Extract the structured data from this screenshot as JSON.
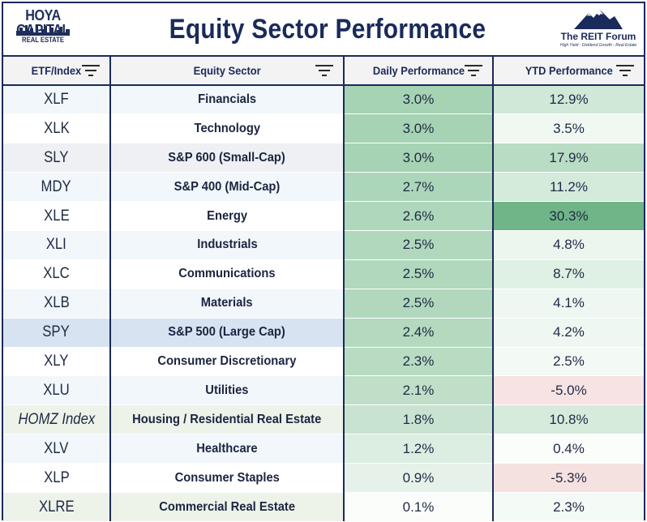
{
  "header": {
    "title": "Equity Sector Performance",
    "logo_left": {
      "line1": "HOYA CAPITAL",
      "line2": "REAL ESTATE"
    },
    "logo_right": {
      "name": "The REIT Forum",
      "tagline": "High Yield - Dividend Growth - Real Estate"
    }
  },
  "columns": [
    {
      "label": "ETF/Index"
    },
    {
      "label": "Equity Sector"
    },
    {
      "label": "Daily Performance"
    },
    {
      "label": "YTD Performance"
    }
  ],
  "icons": {
    "filter": "filter-icon",
    "logo_left": "skyline-icon",
    "logo_right": "mountain-icon"
  },
  "colors": {
    "border": "#1a2a5a",
    "green_strong": "#6fb587",
    "negative": "#f7e3e3"
  },
  "rows": [
    {
      "etf": "XLF",
      "sector": "Financials",
      "daily": "3.0%",
      "ytd": "12.9%",
      "bg1": "#f1f7fb",
      "bg3": "#a6d3b3",
      "bg4": "#cfe8d7"
    },
    {
      "etf": "XLK",
      "sector": "Technology",
      "daily": "3.0%",
      "ytd": "3.5%",
      "bg1": "#ffffff",
      "bg3": "#a6d3b3",
      "bg4": "#f0f8f2"
    },
    {
      "etf": "SLY",
      "sector": "S&P 600 (Small-Cap)",
      "daily": "3.0%",
      "ytd": "17.9%",
      "bg1": "#eef0f3",
      "bg3": "#a6d3b3",
      "bg4": "#b9dcc4"
    },
    {
      "etf": "MDY",
      "sector": "S&P 400 (Mid-Cap)",
      "daily": "2.7%",
      "ytd": "11.2%",
      "bg1": "#f1f7fb",
      "bg3": "#acd6b9",
      "bg4": "#d4eadb"
    },
    {
      "etf": "XLE",
      "sector": "Energy",
      "daily": "2.6%",
      "ytd": "30.3%",
      "bg1": "#ffffff",
      "bg3": "#afd7bb",
      "bg4": "#6fb587"
    },
    {
      "etf": "XLI",
      "sector": "Industrials",
      "daily": "2.5%",
      "ytd": "4.8%",
      "bg1": "#f1f7fb",
      "bg3": "#b1d8bd",
      "bg4": "#ecf6ef"
    },
    {
      "etf": "XLC",
      "sector": "Communications",
      "daily": "2.5%",
      "ytd": "8.7%",
      "bg1": "#ffffff",
      "bg3": "#b1d8bd",
      "bg4": "#dff0e4"
    },
    {
      "etf": "XLB",
      "sector": "Materials",
      "daily": "2.5%",
      "ytd": "4.1%",
      "bg1": "#f1f7fb",
      "bg3": "#b1d8bd",
      "bg4": "#eef7f1"
    },
    {
      "etf": "SPY",
      "sector": "S&P 500 (Large Cap)",
      "daily": "2.4%",
      "ytd": "4.2%",
      "bg1": "#d7e3f1",
      "bg3": "#b4d9bf",
      "bg4": "#eef7f1"
    },
    {
      "etf": "XLY",
      "sector": "Consumer Discretionary",
      "daily": "2.3%",
      "ytd": "2.5%",
      "bg1": "#ffffff",
      "bg3": "#b8dbc2",
      "bg4": "#f3f9f5"
    },
    {
      "etf": "XLU",
      "sector": "Utilities",
      "daily": "2.1%",
      "ytd": "-5.0%",
      "bg1": "#f1f7fb",
      "bg3": "#bfdfc8",
      "bg4": "#f7e3e3"
    },
    {
      "etf": "HOMZ Index",
      "sector": "Housing / Residential Real Estate",
      "daily": "1.8%",
      "ytd": "10.8%",
      "bg1": "#eef3ea",
      "bg3": "#c8e3d0",
      "bg4": "#d6ebdc",
      "italic": true
    },
    {
      "etf": "XLV",
      "sector": "Healthcare",
      "daily": "1.2%",
      "ytd": "0.4%",
      "bg1": "#f1f7fb",
      "bg3": "#dcede1",
      "bg4": "#fbfdfb"
    },
    {
      "etf": "XLP",
      "sector": "Consumer Staples",
      "daily": "0.9%",
      "ytd": "-5.3%",
      "bg1": "#ffffff",
      "bg3": "#e6f2e9",
      "bg4": "#f6e1e1"
    },
    {
      "etf": "XLRE",
      "sector": "Commercial Real Estate",
      "daily": "0.1%",
      "ytd": "2.3%",
      "bg1": "#eef3ea",
      "bg3": "#fbfdfb",
      "bg4": "#f4faf6"
    }
  ]
}
